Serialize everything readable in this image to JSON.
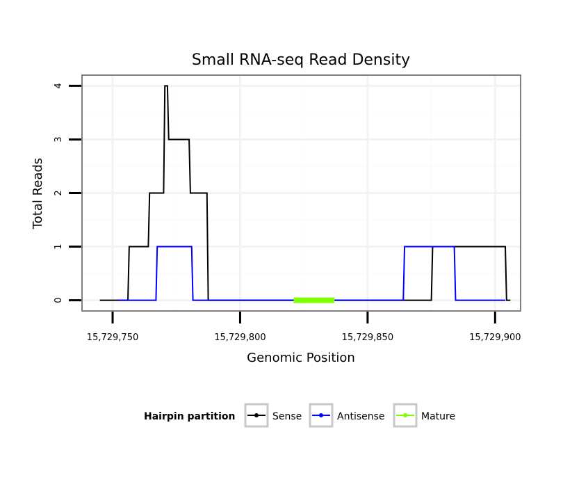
{
  "chart_data": {
    "type": "line",
    "title": "Small RNA-seq Read Density",
    "xlabel": "Genomic Position",
    "ylabel": "Total Reads",
    "xlim": [
      15729738,
      15729910
    ],
    "ylim": [
      -0.2,
      4.2
    ],
    "x_ticks": [
      15729750,
      15729800,
      15729850,
      15729900
    ],
    "x_tick_labels": [
      "15,729,750",
      "15,729,800",
      "15,729,850",
      "15,729,900"
    ],
    "y_ticks": [
      0,
      1,
      2,
      3,
      4
    ],
    "y_tick_labels": [
      "0",
      "1",
      "2",
      "3",
      "4"
    ],
    "grid": true,
    "legend": {
      "title": "Hairpin partition",
      "position": "bottom",
      "entries": [
        "Sense",
        "Antisense",
        "Mature"
      ]
    },
    "series": [
      {
        "name": "Sense",
        "color": "#000000",
        "x": [
          15729745,
          15729756,
          15729756.5,
          15729764,
          15729764.5,
          15729770,
          15729770.5,
          15729771.5,
          15729772,
          15729780,
          15729780.5,
          15729787,
          15729787.5,
          15729788,
          15729875,
          15729875.5,
          15729904,
          15729904.5,
          15729906
        ],
        "y": [
          0,
          0,
          1,
          1,
          2,
          2,
          4,
          4,
          3,
          3,
          2,
          2,
          0,
          0,
          0,
          1,
          1,
          0,
          0
        ]
      },
      {
        "name": "Antisense",
        "color": "#0000ff",
        "x": [
          15729752,
          15729767,
          15729767.5,
          15729781,
          15729781.5,
          15729788,
          15729864,
          15729864.5,
          15729884,
          15729884.5,
          15729904
        ],
        "y": [
          0,
          0,
          1,
          1,
          0,
          0,
          0,
          1,
          1,
          0,
          0
        ]
      },
      {
        "name": "Mature",
        "color": "#7fff00",
        "x": [
          15729821,
          15729837
        ],
        "y": [
          0,
          0
        ]
      }
    ]
  }
}
